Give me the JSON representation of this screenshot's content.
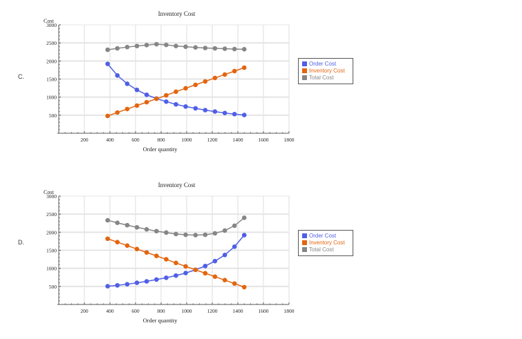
{
  "chart_data": [
    {
      "label": "C.",
      "type": "line",
      "title": "Inventory Cost",
      "xlabel": "Order quantity",
      "ylabel": "Cost",
      "xlim": [
        0,
        1800
      ],
      "ylim": [
        0,
        3000
      ],
      "xticks": [
        200,
        400,
        600,
        800,
        1000,
        1200,
        1400,
        1600,
        1800
      ],
      "yticks": [
        500,
        1000,
        1500,
        2000,
        2500,
        3000
      ],
      "grid": true,
      "legend": "right",
      "x": [
        382,
        458,
        535,
        611,
        687,
        764,
        840,
        916,
        992,
        1069,
        1145,
        1221,
        1298,
        1374,
        1450
      ],
      "series": [
        {
          "name": "Order Cost",
          "color": "#4f5fe6",
          "values": [
            1920,
            1600,
            1370,
            1200,
            1065,
            960,
            875,
            800,
            740,
            690,
            640,
            600,
            560,
            530,
            505
          ]
        },
        {
          "name": "Inventory Cost",
          "color": "#e3650f",
          "values": [
            480,
            575,
            670,
            765,
            860,
            955,
            1050,
            1150,
            1245,
            1340,
            1435,
            1530,
            1625,
            1720,
            1815
          ]
        },
        {
          "name": "Total Cost",
          "color": "#868686",
          "values": [
            2310,
            2350,
            2385,
            2415,
            2440,
            2465,
            2445,
            2415,
            2395,
            2375,
            2360,
            2350,
            2340,
            2330,
            2325
          ]
        }
      ]
    },
    {
      "label": "D.",
      "type": "line",
      "title": "Inventory Cost",
      "xlabel": "Order quantity",
      "ylabel": "Cost",
      "xlim": [
        0,
        1800
      ],
      "ylim": [
        0,
        3000
      ],
      "xticks": [
        200,
        400,
        600,
        800,
        1000,
        1200,
        1400,
        1600,
        1800
      ],
      "yticks": [
        500,
        1000,
        1500,
        2000,
        2500,
        3000
      ],
      "grid": true,
      "legend": "right",
      "x": [
        382,
        458,
        535,
        611,
        687,
        764,
        840,
        916,
        992,
        1069,
        1145,
        1221,
        1298,
        1374,
        1450
      ],
      "series": [
        {
          "name": "Order Cost",
          "color": "#4f5fe6",
          "values": [
            505,
            530,
            560,
            600,
            640,
            690,
            740,
            800,
            870,
            960,
            1065,
            1200,
            1370,
            1600,
            1920
          ]
        },
        {
          "name": "Inventory Cost",
          "color": "#e3650f",
          "values": [
            1820,
            1725,
            1630,
            1535,
            1440,
            1345,
            1250,
            1150,
            1055,
            960,
            865,
            770,
            675,
            580,
            480
          ]
        },
        {
          "name": "Total Cost",
          "color": "#868686",
          "values": [
            2330,
            2260,
            2195,
            2135,
            2080,
            2030,
            1990,
            1950,
            1930,
            1920,
            1930,
            1970,
            2045,
            2180,
            2400
          ]
        }
      ]
    }
  ]
}
